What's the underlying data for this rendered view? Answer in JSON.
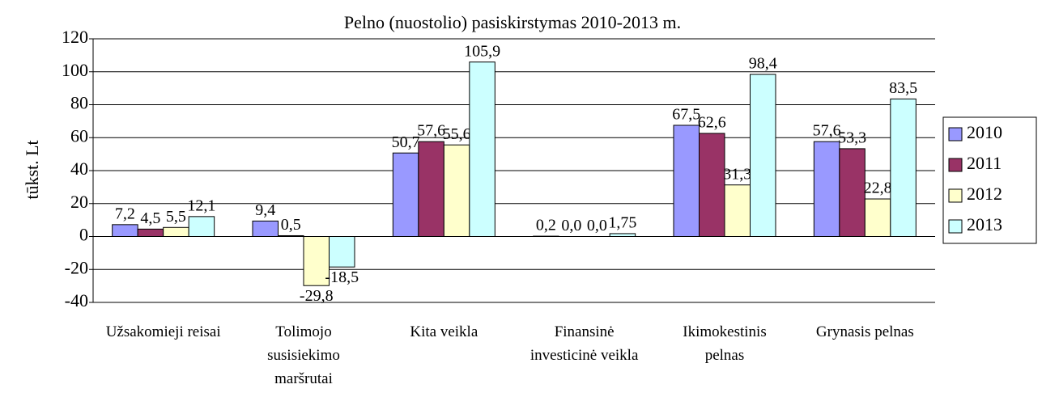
{
  "chart_data": {
    "type": "bar",
    "title": "Pelno (nuostolio) pasiskirstymas 2010-2013 m.",
    "y_label": "tūkst. Lt",
    "categories": [
      "Užsakomieji reisai",
      "Tolimojo susisiekimo maršrutai",
      "Kita veikla",
      "Finansinė investicinė veikla",
      "Ikimokestinis pelnas",
      "Grynasis pelnas"
    ],
    "series": [
      {
        "name": "2010",
        "color": "#9999ff",
        "values": [
          7.2,
          9.4,
          50.7,
          0.2,
          67.5,
          57.6
        ],
        "value_labels": [
          "7,2",
          "9,4",
          "50,7",
          "0,2",
          "67,5",
          "57,6"
        ]
      },
      {
        "name": "2011",
        "color": "#993366",
        "values": [
          4.5,
          0.5,
          57.6,
          0.0,
          62.6,
          53.3
        ],
        "value_labels": [
          "4,5",
          "0,5",
          "57,6",
          "0,0",
          "62,6",
          "53,3"
        ]
      },
      {
        "name": "2012",
        "color": "#ffffcc",
        "values": [
          5.5,
          -29.8,
          55.6,
          0.0,
          31.3,
          22.8
        ],
        "value_labels": [
          "5,5",
          "-29,8",
          "55,6",
          "0,0",
          "31,3",
          "22,8"
        ]
      },
      {
        "name": "2013",
        "color": "#ccffff",
        "values": [
          12.1,
          -18.5,
          105.9,
          1.75,
          98.4,
          83.5
        ],
        "value_labels": [
          "12,1",
          "-18,5",
          "105,9",
          "1,75",
          "98,4",
          "83,5"
        ]
      }
    ],
    "ylim": [
      -40,
      120
    ],
    "yticks": [
      -40,
      -20,
      0,
      20,
      40,
      60,
      80,
      100,
      120
    ],
    "grid": true,
    "legend": "right"
  }
}
